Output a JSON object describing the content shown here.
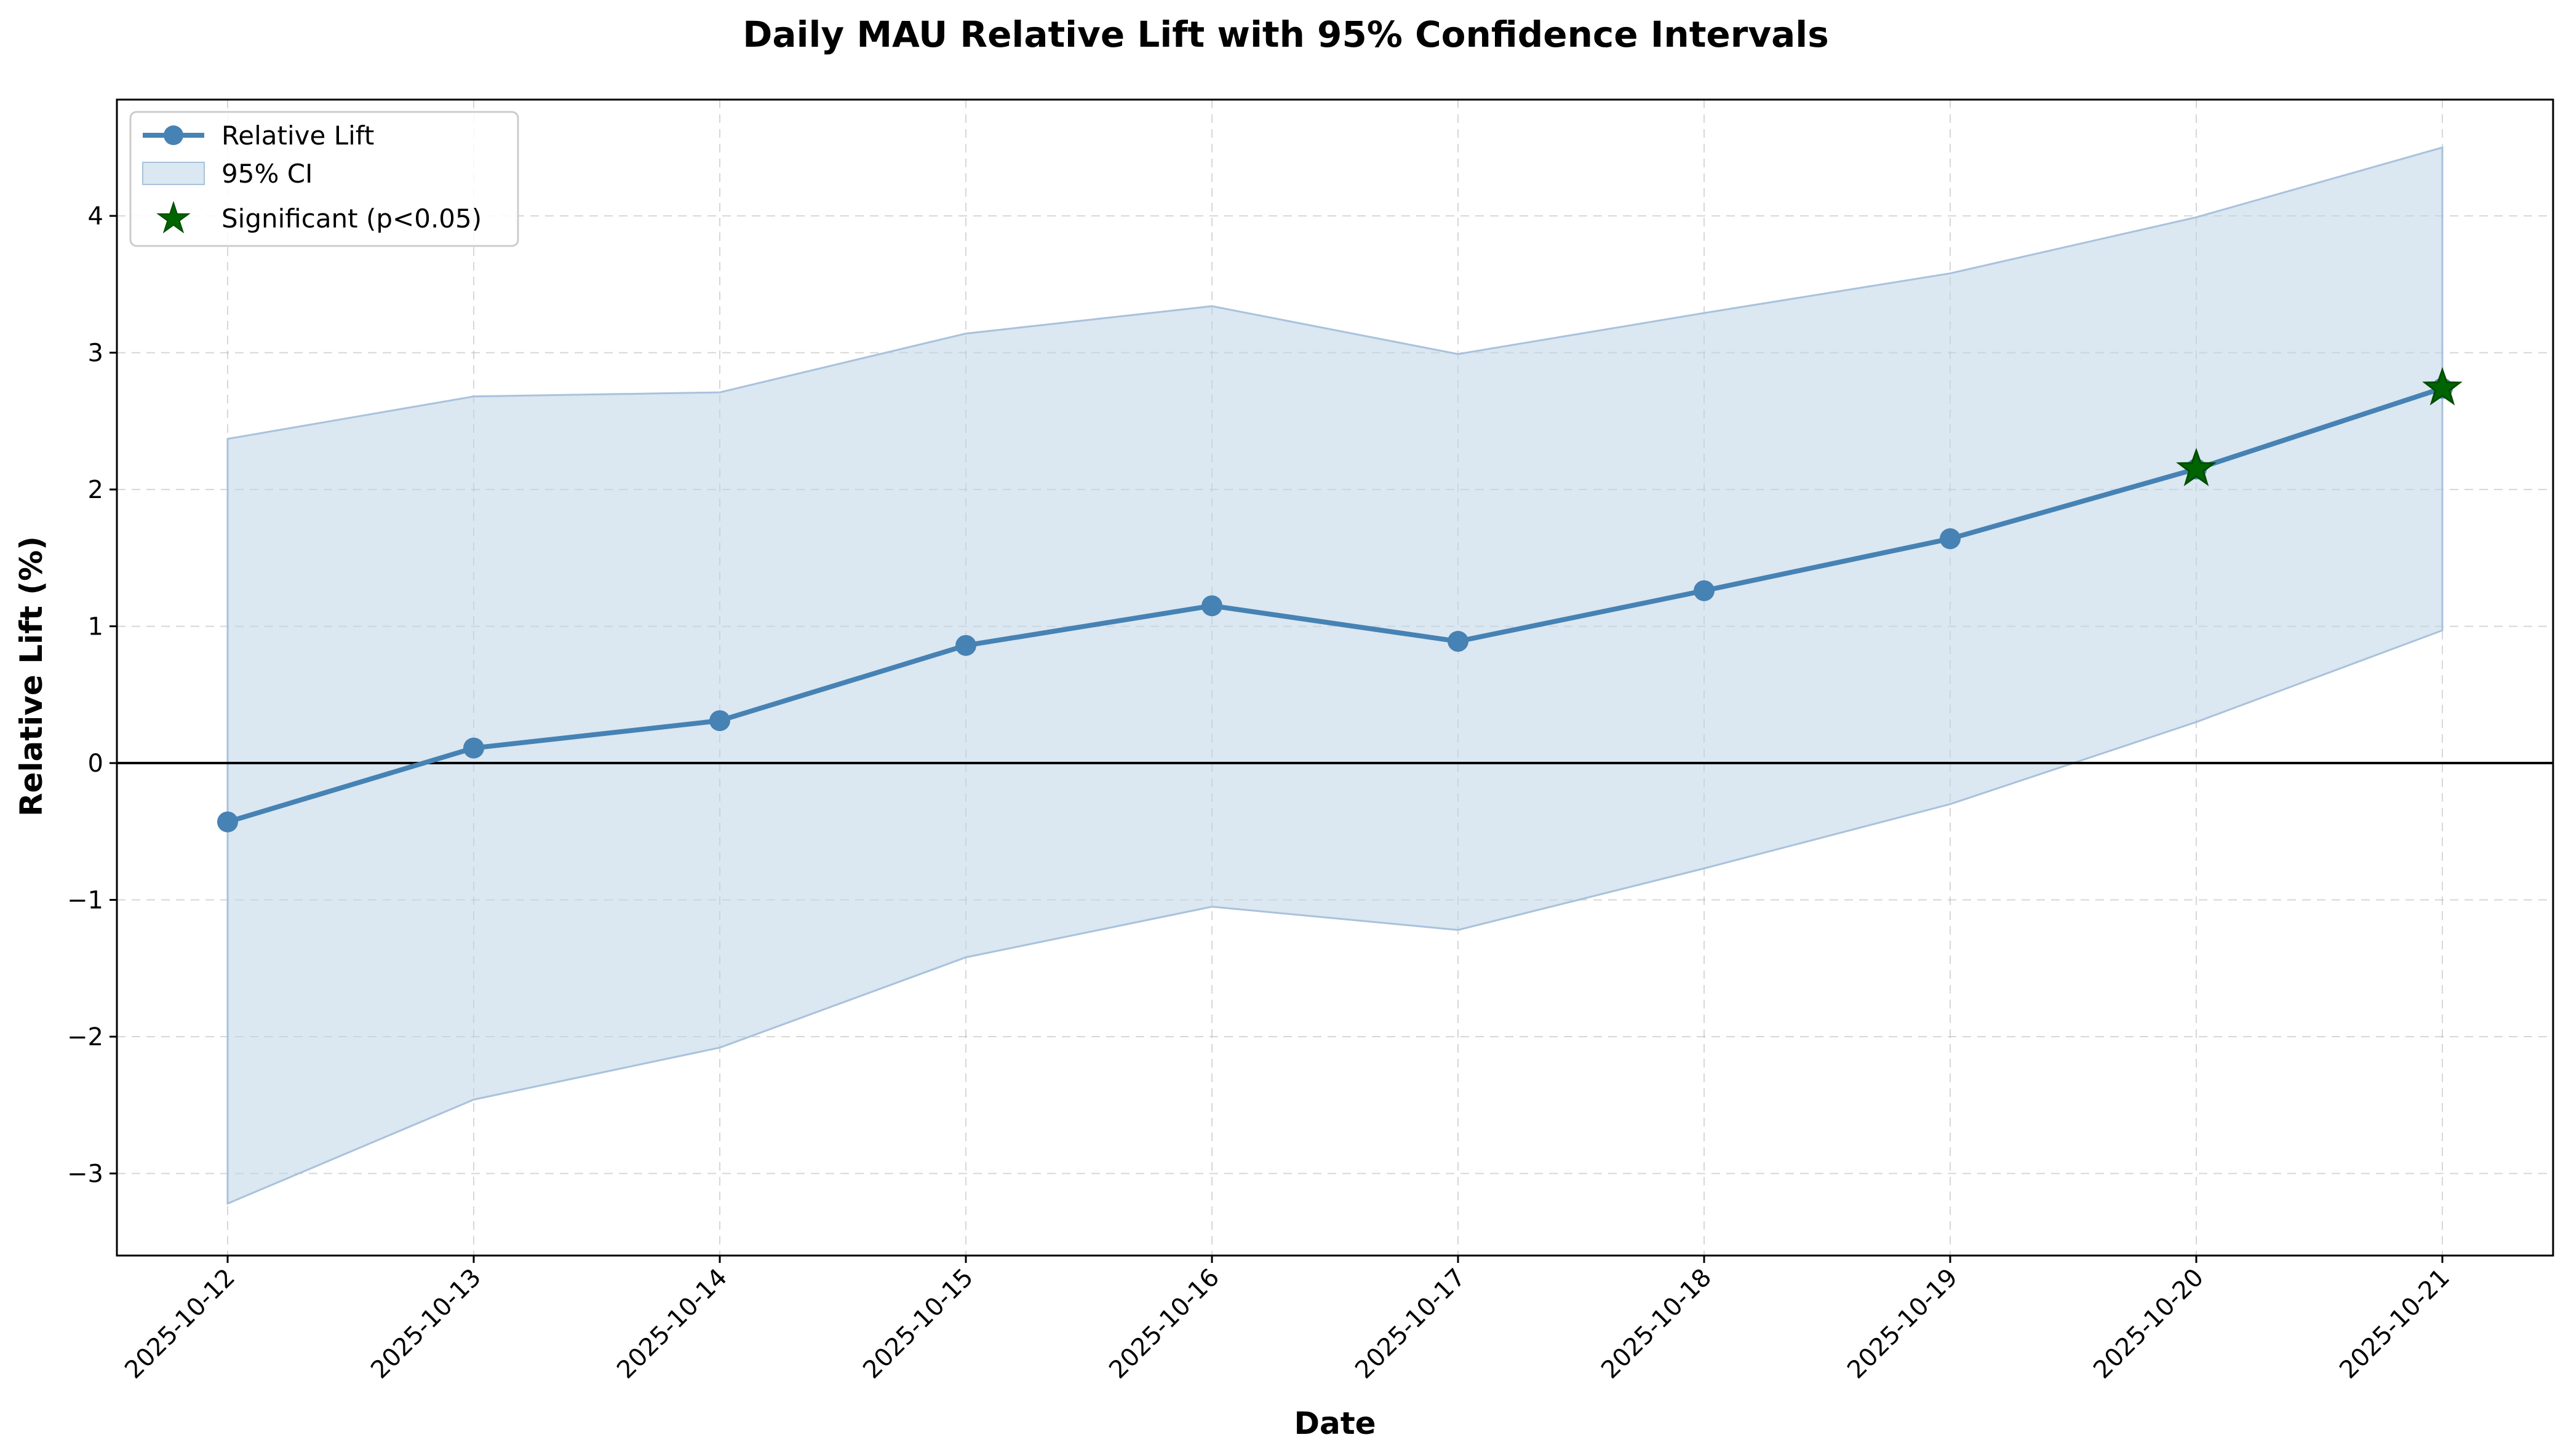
{
  "chart_data": {
    "type": "line",
    "title": "Daily MAU Relative Lift with 95% Confidence Intervals",
    "xlabel": "Date",
    "ylabel": "Relative Lift (%)",
    "x": [
      "2025-10-12",
      "2025-10-13",
      "2025-10-14",
      "2025-10-15",
      "2025-10-16",
      "2025-10-17",
      "2025-10-18",
      "2025-10-19",
      "2025-10-20",
      "2025-10-21"
    ],
    "series": [
      {
        "name": "Relative Lift",
        "values": [
          -0.43,
          0.11,
          0.31,
          0.86,
          1.15,
          0.89,
          1.26,
          1.64,
          2.15,
          2.74
        ],
        "color": "#4682b4"
      },
      {
        "name": "95% CI",
        "lower": [
          -3.22,
          -2.46,
          -2.08,
          -1.42,
          -1.05,
          -1.22,
          -0.77,
          -0.3,
          0.3,
          0.97
        ],
        "upper": [
          2.37,
          2.68,
          2.71,
          3.14,
          3.34,
          2.99,
          3.29,
          3.58,
          3.99,
          4.5
        ],
        "color": "#bdd3e6"
      },
      {
        "name": "Significant (p<0.05)",
        "x": [
          "2025-10-20",
          "2025-10-21"
        ],
        "values": [
          2.15,
          2.74
        ],
        "marker": "star",
        "color": "#006400"
      }
    ],
    "reference_line": 0,
    "ylim": [
      -3.6,
      4.85
    ],
    "yticks": [
      -3,
      -2,
      -1,
      0,
      1,
      2,
      3,
      4
    ],
    "ytick_labels": [
      "−3",
      "−2",
      "−1",
      "0",
      "1",
      "2",
      "3",
      "4"
    ],
    "grid": true,
    "legend_position": "upper-left"
  }
}
